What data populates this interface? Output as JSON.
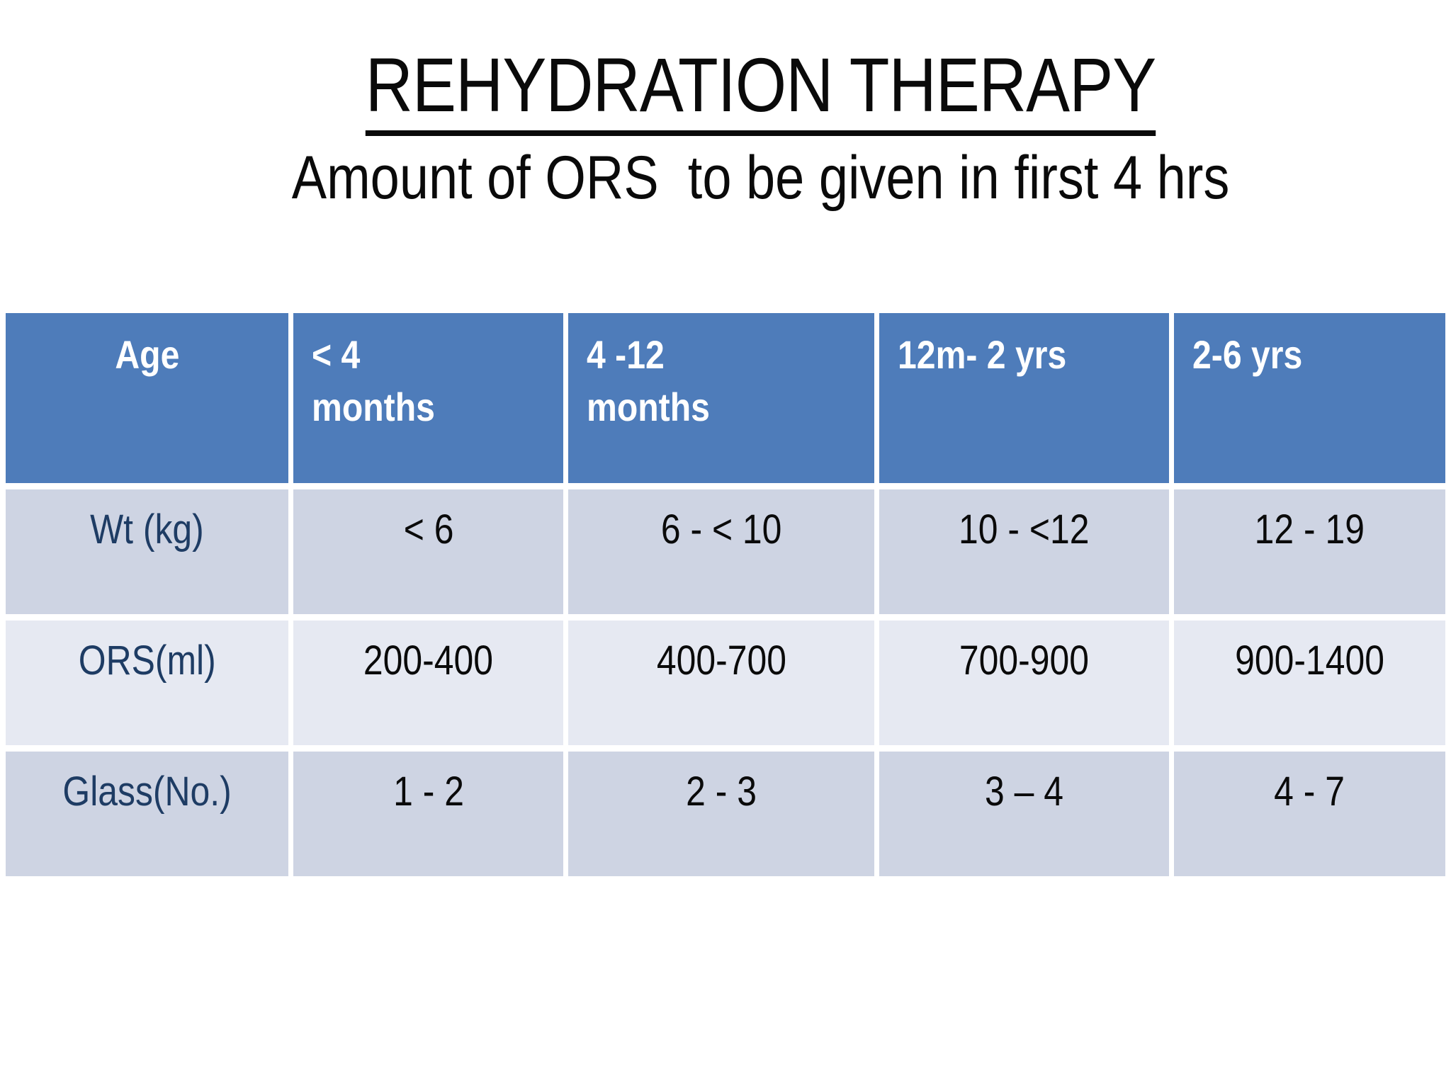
{
  "title": "REHYDRATION THERAPY",
  "subtitle": "Amount of ORS  to be given in first 4 hrs",
  "colors": {
    "header_bg": "#4E7CBA",
    "row_odd_bg": "#CED4E3",
    "row_even_bg": "#E6E9F2",
    "label_text": "#1E3C64",
    "header_text": "#FFFFFF",
    "body_text": "#0A0A0A"
  },
  "table": {
    "header": [
      "Age",
      "< 4\nmonths",
      "4 -12\nmonths",
      "12m- 2 yrs",
      "2-6 yrs"
    ],
    "rows": [
      {
        "label": "Wt (kg)",
        "values": [
          "< 6",
          "6 - < 10",
          "10 - <12",
          "12 - 19"
        ]
      },
      {
        "label": "ORS(ml)",
        "values": [
          "200-400",
          "400-700",
          "700-900",
          "900-1400"
        ]
      },
      {
        "label": "Glass(No.)",
        "values": [
          "1 - 2",
          "2 - 3",
          "3 – 4",
          "4 - 7"
        ]
      }
    ]
  }
}
